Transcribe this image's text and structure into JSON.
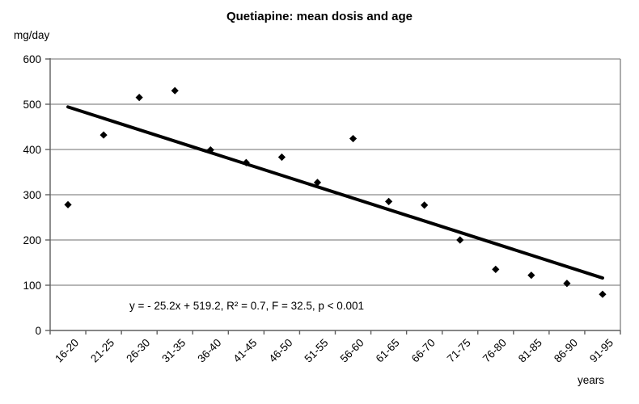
{
  "chart_data": {
    "type": "scatter",
    "title": "Quetiapine: mean dosis and age",
    "ylabel": "mg/day",
    "xlabel": "years",
    "categories": [
      "16-20",
      "21-25",
      "26-30",
      "31-35",
      "36-40",
      "41-45",
      "46-50",
      "51-55",
      "56-60",
      "61-65",
      "66-70",
      "71-75",
      "76-80",
      "81-85",
      "86-90",
      "91-95"
    ],
    "values": [
      278,
      432,
      515,
      530,
      399,
      371,
      383,
      327,
      424,
      285,
      277,
      200,
      135,
      122,
      104,
      80
    ],
    "ylim": [
      0,
      600
    ],
    "ytick_step": 100,
    "grid": true,
    "legend": false,
    "marker": "diamond",
    "trendline": {
      "slope": -25.2,
      "intercept": 519.2,
      "x_start": 1,
      "x_end": 16
    },
    "annotation": "y = - 25.2x + 519.2, R² = 0.7, F = 32.5, p < 0.001",
    "colors": {
      "marker": "#000000",
      "trendline": "#000000",
      "gridline": "#8a8a8a",
      "axis": "#5f5f5f",
      "text": "#000000",
      "background": "#ffffff"
    }
  }
}
